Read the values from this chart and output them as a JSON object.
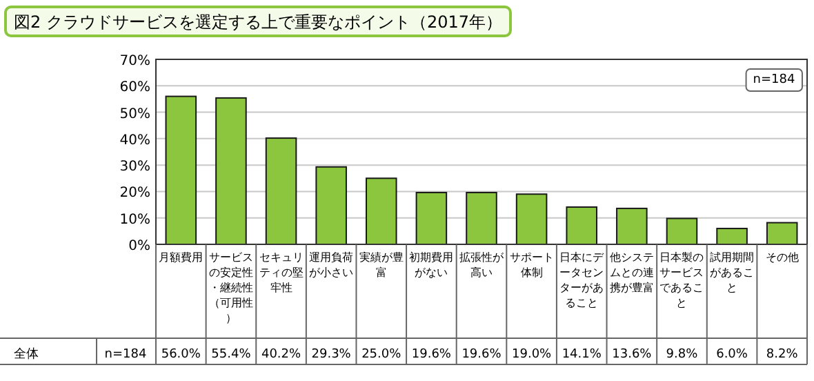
{
  "chart_data": {
    "type": "bar",
    "title": "図2 クラウドサービスを選定する上で重要なポイント（2017年）",
    "categories": [
      "月額費用",
      "サービスの安定性・継続性（可用性）",
      "セキュリティの堅牢性",
      "運用負荷が小さい",
      "実績が豊富",
      "初期費用がない",
      "拡張性が高い",
      "サポート体制",
      "日本にデータセンターがあること",
      "他システムとの連携が豊富",
      "日本製のサービスであること",
      "試用期間があること",
      "その他"
    ],
    "values": [
      56.0,
      55.4,
      40.2,
      29.3,
      25.0,
      19.6,
      19.6,
      19.0,
      14.1,
      13.6,
      9.8,
      6.0,
      8.2
    ],
    "value_labels": [
      "56.0%",
      "55.4%",
      "40.2%",
      "29.3%",
      "25.0%",
      "19.6%",
      "19.6%",
      "19.0%",
      "14.1%",
      "13.6%",
      "9.8%",
      "6.0%",
      "8.2%"
    ],
    "color": "#8cc63f",
    "ylim": [
      0,
      70
    ],
    "yticks": [
      {
        "value": 0,
        "label": "0%"
      },
      {
        "value": 10,
        "label": "10%"
      },
      {
        "value": 20,
        "label": "20%"
      },
      {
        "value": 30,
        "label": "30%"
      },
      {
        "value": 40,
        "label": "40%"
      },
      {
        "value": 50,
        "label": "50%"
      },
      {
        "value": 60,
        "label": "60%"
      },
      {
        "value": 70,
        "label": "70%"
      }
    ],
    "grid": "y",
    "annotations": [
      "n=184",
      "全体",
      "n=184"
    ]
  }
}
